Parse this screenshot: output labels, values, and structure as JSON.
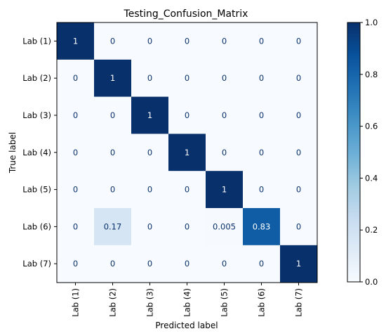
{
  "chart_data": {
    "type": "heatmap",
    "title": "Testing_Confusion_Matrix",
    "xlabel": "Predicted label",
    "ylabel": "True label",
    "x_categories": [
      "Lab (1)",
      "Lab (2)",
      "Lab (3)",
      "Lab (4)",
      "Lab (5)",
      "Lab (6)",
      "Lab (7)"
    ],
    "y_categories": [
      "Lab (1)",
      "Lab (2)",
      "Lab (3)",
      "Lab (4)",
      "Lab (5)",
      "Lab (6)",
      "Lab (7)"
    ],
    "values": [
      [
        1,
        0,
        0,
        0,
        0,
        0,
        0
      ],
      [
        0,
        1,
        0,
        0,
        0,
        0,
        0
      ],
      [
        0,
        0,
        1,
        0,
        0,
        0,
        0
      ],
      [
        0,
        0,
        0,
        1,
        0,
        0,
        0
      ],
      [
        0,
        0,
        0,
        0,
        1,
        0,
        0
      ],
      [
        0,
        0.17,
        0,
        0,
        0.005,
        0.83,
        0
      ],
      [
        0,
        0,
        0,
        0,
        0,
        0,
        1
      ]
    ],
    "cell_labels": [
      [
        "1",
        "0",
        "0",
        "0",
        "0",
        "0",
        "0"
      ],
      [
        "0",
        "1",
        "0",
        "0",
        "0",
        "0",
        "0"
      ],
      [
        "0",
        "0",
        "1",
        "0",
        "0",
        "0",
        "0"
      ],
      [
        "0",
        "0",
        "0",
        "1",
        "0",
        "0",
        "0"
      ],
      [
        "0",
        "0",
        "0",
        "0",
        "1",
        "0",
        "0"
      ],
      [
        "0",
        "0.17",
        "0",
        "0",
        "0.005",
        "0.83",
        "0"
      ],
      [
        "0",
        "0",
        "0",
        "0",
        "0",
        "0",
        "1"
      ]
    ],
    "colormap": "Blues",
    "colorbar": {
      "range": [
        0.0,
        1.0
      ],
      "ticks": [
        "0.0",
        "0.2",
        "0.4",
        "0.6",
        "0.8",
        "1.0"
      ]
    },
    "colors": {
      "low": "#f7fbff",
      "mid": "#6baed6",
      "high": "#08306b"
    }
  }
}
